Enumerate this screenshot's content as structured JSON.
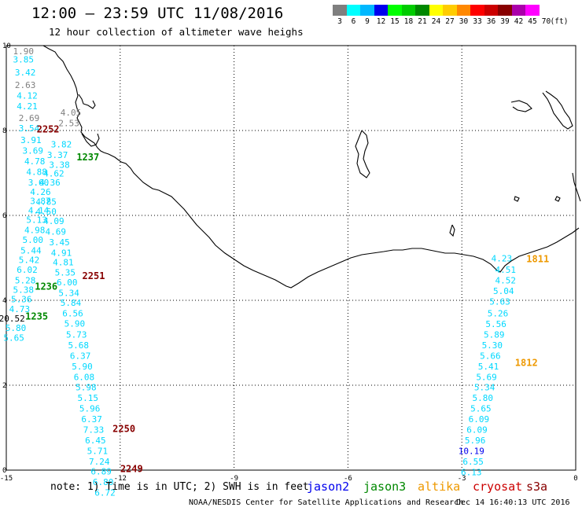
{
  "header": {
    "title": "12:00 – 23:59 UTC 11/08/2016",
    "subtitle": "12 hour collection of altimeter wave heighs"
  },
  "legend": {
    "unit": "(ft)",
    "swatches": [
      {
        "label": "3",
        "color": "#7f7f7f"
      },
      {
        "label": "6",
        "color": "#00ffff"
      },
      {
        "label": "9",
        "color": "#00b8ff"
      },
      {
        "label": "12",
        "color": "#0000ee"
      },
      {
        "label": "15",
        "color": "#00ff00"
      },
      {
        "label": "18",
        "color": "#00cc00"
      },
      {
        "label": "21",
        "color": "#008800"
      },
      {
        "label": "24",
        "color": "#ffff00"
      },
      {
        "label": "27",
        "color": "#ffcc00"
      },
      {
        "label": "30",
        "color": "#ff8800"
      },
      {
        "label": "33",
        "color": "#ff0000"
      },
      {
        "label": "36",
        "color": "#cc0000"
      },
      {
        "label": "39",
        "color": "#880000"
      },
      {
        "label": "42",
        "color": "#aa00aa"
      },
      {
        "label": "45",
        "color": "#ff00ff"
      },
      {
        "label": "70",
        "color": "#ffffff"
      }
    ]
  },
  "map": {
    "lon_range": [
      -15,
      0
    ],
    "lat_range": [
      0,
      10
    ],
    "x_ticks": [
      "-15",
      "-12",
      "-9",
      "-6",
      "-3",
      "0"
    ],
    "y_ticks": [
      "0",
      "2",
      "4",
      "6",
      "8",
      "10"
    ],
    "gridlines": "dotted",
    "colors": {
      "gray": "#7f7f7f",
      "cyan": "#00d8ff",
      "blue": "#0000ee",
      "green3": "#008800",
      "darkred": "#880000",
      "orange": "#ee9900",
      "black": "#000000"
    },
    "pass_labels": [
      {
        "text": "2252",
        "lon": -13.9,
        "lat": 7.95,
        "color": "darkred"
      },
      {
        "text": "1237",
        "lon": -12.85,
        "lat": 7.3,
        "color": "green3"
      },
      {
        "text": "2251",
        "lon": -12.7,
        "lat": 4.5,
        "color": "darkred"
      },
      {
        "text": "1236",
        "lon": -13.95,
        "lat": 4.25,
        "color": "green3"
      },
      {
        "text": "1235",
        "lon": -14.2,
        "lat": 3.55,
        "color": "green3"
      },
      {
        "text": "2250",
        "lon": -11.9,
        "lat": 0.9,
        "color": "darkred"
      },
      {
        "text": "2249",
        "lon": -11.7,
        "lat": -0.05,
        "color": "darkred"
      },
      {
        "text": "1811",
        "lon": -1.0,
        "lat": 4.9,
        "color": "orange"
      },
      {
        "text": "1812",
        "lon": -1.3,
        "lat": 2.45,
        "color": "orange"
      }
    ],
    "obs": [
      {
        "text": "1.90",
        "lon": -14.55,
        "lat": 9.8,
        "color": "gray"
      },
      {
        "text": "3.85",
        "lon": -14.55,
        "lat": 9.6,
        "color": "cyan"
      },
      {
        "text": "3.42",
        "lon": -14.5,
        "lat": 9.3,
        "color": "cyan"
      },
      {
        "text": "2.63",
        "lon": -14.5,
        "lat": 9.0,
        "color": "gray"
      },
      {
        "text": "4.12",
        "lon": -14.45,
        "lat": 8.75,
        "color": "cyan"
      },
      {
        "text": "4.21",
        "lon": -14.45,
        "lat": 8.5,
        "color": "cyan"
      },
      {
        "text": "2.69",
        "lon": -14.4,
        "lat": 8.22,
        "color": "gray"
      },
      {
        "text": "3.54",
        "lon": -14.4,
        "lat": 7.98,
        "color": "cyan"
      },
      {
        "text": "3.91",
        "lon": -14.35,
        "lat": 7.7,
        "color": "cyan"
      },
      {
        "text": "3.69",
        "lon": -14.3,
        "lat": 7.45,
        "color": "cyan"
      },
      {
        "text": "4.78",
        "lon": -14.25,
        "lat": 7.2,
        "color": "cyan"
      },
      {
        "text": "4.88",
        "lon": -14.2,
        "lat": 6.95,
        "color": "cyan"
      },
      {
        "text": "3.60",
        "lon": -14.15,
        "lat": 6.7,
        "color": "cyan"
      },
      {
        "text": "4.26",
        "lon": -14.1,
        "lat": 6.48,
        "color": "cyan"
      },
      {
        "text": "3.87",
        "lon": -14.1,
        "lat": 6.27,
        "color": "cyan"
      },
      {
        "text": "4.14",
        "lon": -14.15,
        "lat": 6.05,
        "color": "cyan"
      },
      {
        "text": "5.13",
        "lon": -14.2,
        "lat": 5.82,
        "color": "cyan"
      },
      {
        "text": "4.98",
        "lon": -14.25,
        "lat": 5.58,
        "color": "cyan"
      },
      {
        "text": "5.00",
        "lon": -14.3,
        "lat": 5.35,
        "color": "cyan"
      },
      {
        "text": "5.44",
        "lon": -14.35,
        "lat": 5.1,
        "color": "cyan"
      },
      {
        "text": "5.42",
        "lon": -14.4,
        "lat": 4.88,
        "color": "cyan"
      },
      {
        "text": "6.02",
        "lon": -14.45,
        "lat": 4.65,
        "color": "cyan"
      },
      {
        "text": "5.28",
        "lon": -14.5,
        "lat": 4.4,
        "color": "cyan"
      },
      {
        "text": "5.38",
        "lon": -14.55,
        "lat": 4.18,
        "color": "cyan"
      },
      {
        "text": "5.36",
        "lon": -14.6,
        "lat": 3.95,
        "color": "cyan"
      },
      {
        "text": "4.73",
        "lon": -14.65,
        "lat": 3.72,
        "color": "cyan"
      },
      {
        "text": "20.52",
        "lon": -14.85,
        "lat": 3.5,
        "color": "black"
      },
      {
        "text": "5.80",
        "lon": -14.75,
        "lat": 3.28,
        "color": "cyan"
      },
      {
        "text": "5.65",
        "lon": -14.8,
        "lat": 3.05,
        "color": "cyan"
      },
      {
        "text": "4.05",
        "lon": -13.3,
        "lat": 8.35,
        "color": "gray"
      },
      {
        "text": "2.53",
        "lon": -13.35,
        "lat": 8.1,
        "color": "gray"
      },
      {
        "text": "3.82",
        "lon": -13.55,
        "lat": 7.6,
        "color": "cyan"
      },
      {
        "text": "3.37",
        "lon": -13.65,
        "lat": 7.35,
        "color": "cyan"
      },
      {
        "text": "3.38",
        "lon": -13.6,
        "lat": 7.12,
        "color": "cyan"
      },
      {
        "text": "4.62",
        "lon": -13.75,
        "lat": 6.92,
        "color": "cyan"
      },
      {
        "text": "4.36",
        "lon": -13.85,
        "lat": 6.7,
        "color": "cyan"
      },
      {
        "text": "4.85",
        "lon": -13.95,
        "lat": 6.25,
        "color": "cyan"
      },
      {
        "text": "4.50",
        "lon": -13.95,
        "lat": 6.02,
        "color": "cyan"
      },
      {
        "text": "4.09",
        "lon": -13.75,
        "lat": 5.8,
        "color": "cyan"
      },
      {
        "text": "4.69",
        "lon": -13.7,
        "lat": 5.55,
        "color": "cyan"
      },
      {
        "text": "3.45",
        "lon": -13.6,
        "lat": 5.3,
        "color": "cyan"
      },
      {
        "text": "4.91",
        "lon": -13.55,
        "lat": 5.05,
        "color": "cyan"
      },
      {
        "text": "4.81",
        "lon": -13.5,
        "lat": 4.82,
        "color": "cyan"
      },
      {
        "text": "5.35",
        "lon": -13.45,
        "lat": 4.58,
        "color": "cyan"
      },
      {
        "text": "6.00",
        "lon": -13.4,
        "lat": 4.35,
        "color": "cyan"
      },
      {
        "text": "5.34",
        "lon": -13.35,
        "lat": 4.1,
        "color": "cyan"
      },
      {
        "text": "5.84",
        "lon": -13.3,
        "lat": 3.87,
        "color": "cyan"
      },
      {
        "text": "6.56",
        "lon": -13.25,
        "lat": 3.62,
        "color": "cyan"
      },
      {
        "text": "5.90",
        "lon": -13.2,
        "lat": 3.38,
        "color": "cyan"
      },
      {
        "text": "5.73",
        "lon": -13.15,
        "lat": 3.12,
        "color": "cyan"
      },
      {
        "text": "5.68",
        "lon": -13.1,
        "lat": 2.87,
        "color": "cyan"
      },
      {
        "text": "6.37",
        "lon": -13.05,
        "lat": 2.62,
        "color": "cyan"
      },
      {
        "text": "5.90",
        "lon": -13.0,
        "lat": 2.37,
        "color": "cyan"
      },
      {
        "text": "6.08",
        "lon": -12.95,
        "lat": 2.12,
        "color": "cyan"
      },
      {
        "text": "5.98",
        "lon": -12.9,
        "lat": 1.88,
        "color": "cyan"
      },
      {
        "text": "5.15",
        "lon": -12.85,
        "lat": 1.63,
        "color": "cyan"
      },
      {
        "text": "5.96",
        "lon": -12.8,
        "lat": 1.38,
        "color": "cyan"
      },
      {
        "text": "6.37",
        "lon": -12.75,
        "lat": 1.13,
        "color": "cyan"
      },
      {
        "text": "7.33",
        "lon": -12.7,
        "lat": 0.88,
        "color": "cyan"
      },
      {
        "text": "6.45",
        "lon": -12.65,
        "lat": 0.63,
        "color": "cyan"
      },
      {
        "text": "5.71",
        "lon": -12.6,
        "lat": 0.38,
        "color": "cyan"
      },
      {
        "text": "7.24",
        "lon": -12.55,
        "lat": 0.13,
        "color": "cyan"
      },
      {
        "text": "6.89",
        "lon": -12.5,
        "lat": -0.1,
        "color": "cyan"
      },
      {
        "text": "6.80",
        "lon": -12.45,
        "lat": -0.35,
        "color": "cyan"
      },
      {
        "text": "6.72",
        "lon": -12.4,
        "lat": -0.6,
        "color": "cyan"
      },
      {
        "text": "4.23",
        "lon": -1.95,
        "lat": 4.92,
        "color": "cyan"
      },
      {
        "text": "4.51",
        "lon": -1.85,
        "lat": 4.65,
        "color": "cyan"
      },
      {
        "text": "4.52",
        "lon": -1.85,
        "lat": 4.4,
        "color": "cyan"
      },
      {
        "text": "5.04",
        "lon": -1.9,
        "lat": 4.15,
        "color": "cyan"
      },
      {
        "text": "5.63",
        "lon": -2.0,
        "lat": 3.9,
        "color": "cyan"
      },
      {
        "text": "5.26",
        "lon": -2.05,
        "lat": 3.62,
        "color": "cyan"
      },
      {
        "text": "5.56",
        "lon": -2.1,
        "lat": 3.37,
        "color": "cyan"
      },
      {
        "text": "5.89",
        "lon": -2.15,
        "lat": 3.12,
        "color": "cyan"
      },
      {
        "text": "5.30",
        "lon": -2.2,
        "lat": 2.87,
        "color": "cyan"
      },
      {
        "text": "5.66",
        "lon": -2.25,
        "lat": 2.62,
        "color": "cyan"
      },
      {
        "text": "5.41",
        "lon": -2.3,
        "lat": 2.37,
        "color": "cyan"
      },
      {
        "text": "5.69",
        "lon": -2.35,
        "lat": 2.12,
        "color": "cyan"
      },
      {
        "text": "5.34",
        "lon": -2.4,
        "lat": 1.88,
        "color": "cyan"
      },
      {
        "text": "5.80",
        "lon": -2.45,
        "lat": 1.63,
        "color": "cyan"
      },
      {
        "text": "5.65",
        "lon": -2.5,
        "lat": 1.38,
        "color": "cyan"
      },
      {
        "text": "6.09",
        "lon": -2.55,
        "lat": 1.13,
        "color": "cyan"
      },
      {
        "text": "6.09",
        "lon": -2.6,
        "lat": 0.88,
        "color": "cyan"
      },
      {
        "text": "5.96",
        "lon": -2.65,
        "lat": 0.63,
        "color": "cyan"
      },
      {
        "text": "10.19",
        "lon": -2.75,
        "lat": 0.38,
        "color": "blue"
      },
      {
        "text": "6.55",
        "lon": -2.7,
        "lat": 0.13,
        "color": "cyan"
      },
      {
        "text": "6.13",
        "lon": -2.75,
        "lat": -0.12,
        "color": "cyan"
      }
    ]
  },
  "footer": {
    "note": "note: 1) Time is in UTC; 2) SWH is in feet",
    "satellites": [
      {
        "label": "jason2",
        "color": "#0000ee"
      },
      {
        "label": "jason3",
        "color": "#008800"
      },
      {
        "label": "altika",
        "color": "#ee9900"
      },
      {
        "label": "cryosat",
        "color": "#cc0000"
      },
      {
        "label": "s3a",
        "color": "#880000"
      }
    ],
    "credit": "NOAA/NESDIS Center for Satellite Applications and Research",
    "timestamp": "Dec 14 16:40:13 UTC 2016"
  }
}
